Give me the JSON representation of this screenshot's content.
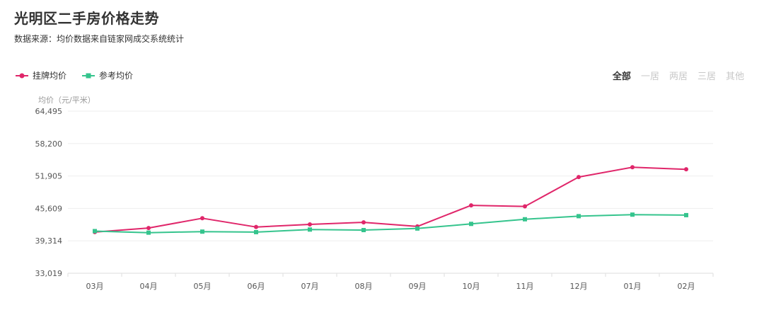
{
  "header": {
    "title": "光明区二手房价格走势",
    "source": "数据来源：均价数据来自链家网成交系统统计"
  },
  "filters": {
    "tabs": [
      "全部",
      "一居",
      "两居",
      "三居",
      "其他"
    ],
    "active": "全部"
  },
  "colors": {
    "listing": "#e0266a",
    "reference": "#35c48d",
    "grid": "#eeeeee",
    "axis": "#dddddd"
  },
  "chart_data": {
    "type": "line",
    "ylabel": "均价（元/平米）",
    "categories": [
      "03月",
      "04月",
      "05月",
      "06月",
      "07月",
      "08月",
      "09月",
      "10月",
      "11月",
      "12月",
      "01月",
      "02月"
    ],
    "yticks": [
      "64,495",
      "58,200",
      "51,905",
      "45,609",
      "39,314",
      "33,019"
    ],
    "ylim": [
      33019,
      64495
    ],
    "legend_position": "top-left",
    "series": [
      {
        "name": "挂牌均价",
        "marker": "circle",
        "values": [
          41000,
          41800,
          43700,
          42000,
          42500,
          42900,
          42100,
          46200,
          46000,
          51700,
          53600,
          53200
        ]
      },
      {
        "name": "参考均价",
        "marker": "square",
        "values": [
          41200,
          40900,
          41100,
          41000,
          41500,
          41400,
          41700,
          42600,
          43500,
          44100,
          44400,
          44300
        ]
      }
    ]
  }
}
